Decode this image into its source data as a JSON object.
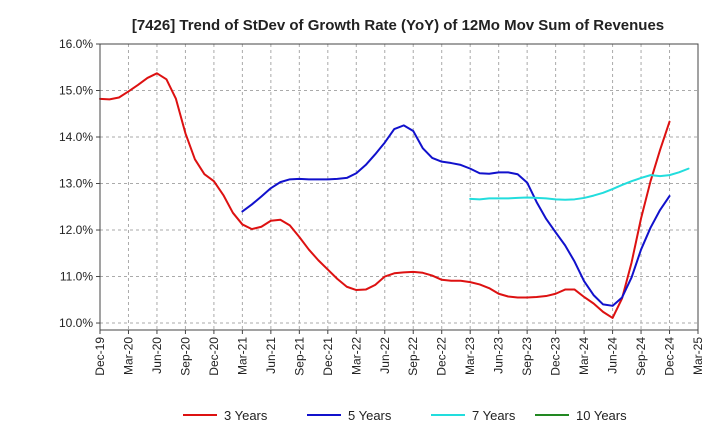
{
  "chart_data": {
    "type": "line",
    "title": "[7426]  Trend of StDev of Growth Rate (YoY) of 12Mo Mov Sum of Revenues",
    "xlabel": "",
    "ylabel": "",
    "ylim": [
      9.85,
      16.0
    ],
    "y_ticks": [
      10.0,
      11.0,
      12.0,
      13.0,
      14.0,
      15.0,
      16.0
    ],
    "y_tick_labels": [
      "10.0%",
      "11.0%",
      "12.0%",
      "13.0%",
      "14.0%",
      "15.0%",
      "16.0%"
    ],
    "x_range_months": [
      0,
      63
    ],
    "x_ticks": [
      0,
      3,
      6,
      9,
      12,
      15,
      18,
      21,
      24,
      27,
      30,
      33,
      36,
      39,
      42,
      45,
      48,
      51,
      54,
      57,
      60,
      63
    ],
    "x_tick_labels": [
      "Dec-19",
      "Mar-20",
      "Jun-20",
      "Sep-20",
      "Dec-20",
      "Mar-21",
      "Jun-21",
      "Sep-21",
      "Dec-21",
      "Mar-22",
      "Jun-22",
      "Sep-22",
      "Dec-22",
      "Mar-23",
      "Jun-23",
      "Sep-23",
      "Dec-23",
      "Mar-24",
      "Jun-24",
      "Sep-24",
      "Dec-24",
      "Mar-25"
    ],
    "grid": true,
    "legend_position": "bottom",
    "series": [
      {
        "name": "3 Years",
        "color": "#dd1111",
        "start_month": 0,
        "values": [
          14.82,
          14.81,
          14.85,
          14.98,
          15.12,
          15.27,
          15.37,
          15.24,
          14.82,
          14.08,
          13.52,
          13.2,
          13.05,
          12.75,
          12.37,
          12.12,
          12.02,
          12.07,
          12.2,
          12.22,
          12.1,
          11.85,
          11.58,
          11.35,
          11.15,
          10.95,
          10.78,
          10.71,
          10.72,
          10.82,
          11.0,
          11.07,
          11.09,
          11.1,
          11.08,
          11.02,
          10.93,
          10.91,
          10.91,
          10.88,
          10.83,
          10.75,
          10.63,
          10.57,
          10.55,
          10.55,
          10.56,
          10.58,
          10.63,
          10.72,
          10.72,
          10.56,
          10.42,
          10.24,
          10.11,
          10.53,
          11.3,
          12.25,
          13.05,
          13.72,
          14.33
        ]
      },
      {
        "name": "5 Years",
        "color": "#1111cc",
        "start_month": 15,
        "values": [
          12.4,
          12.55,
          12.72,
          12.9,
          13.03,
          13.09,
          13.1,
          13.09,
          13.09,
          13.09,
          13.1,
          13.12,
          13.22,
          13.4,
          13.63,
          13.88,
          14.17,
          14.25,
          14.13,
          13.76,
          13.55,
          13.47,
          13.44,
          13.4,
          13.32,
          13.22,
          13.21,
          13.24,
          13.24,
          13.2,
          13.02,
          12.6,
          12.24,
          11.95,
          11.67,
          11.32,
          10.9,
          10.6,
          10.4,
          10.37,
          10.55,
          10.98,
          11.58,
          12.05,
          12.43,
          12.73
        ]
      },
      {
        "name": "7 Years",
        "color": "#22dddd",
        "start_month": 39,
        "values": [
          12.67,
          12.66,
          12.68,
          12.68,
          12.68,
          12.69,
          12.7,
          12.69,
          12.68,
          12.66,
          12.65,
          12.66,
          12.69,
          12.74,
          12.8,
          12.88,
          12.97,
          13.05,
          13.12,
          13.18,
          13.16,
          13.18,
          13.24,
          13.32
        ]
      },
      {
        "name": "10 Years",
        "color": "#228822",
        "start_month": 0,
        "values": []
      }
    ]
  }
}
